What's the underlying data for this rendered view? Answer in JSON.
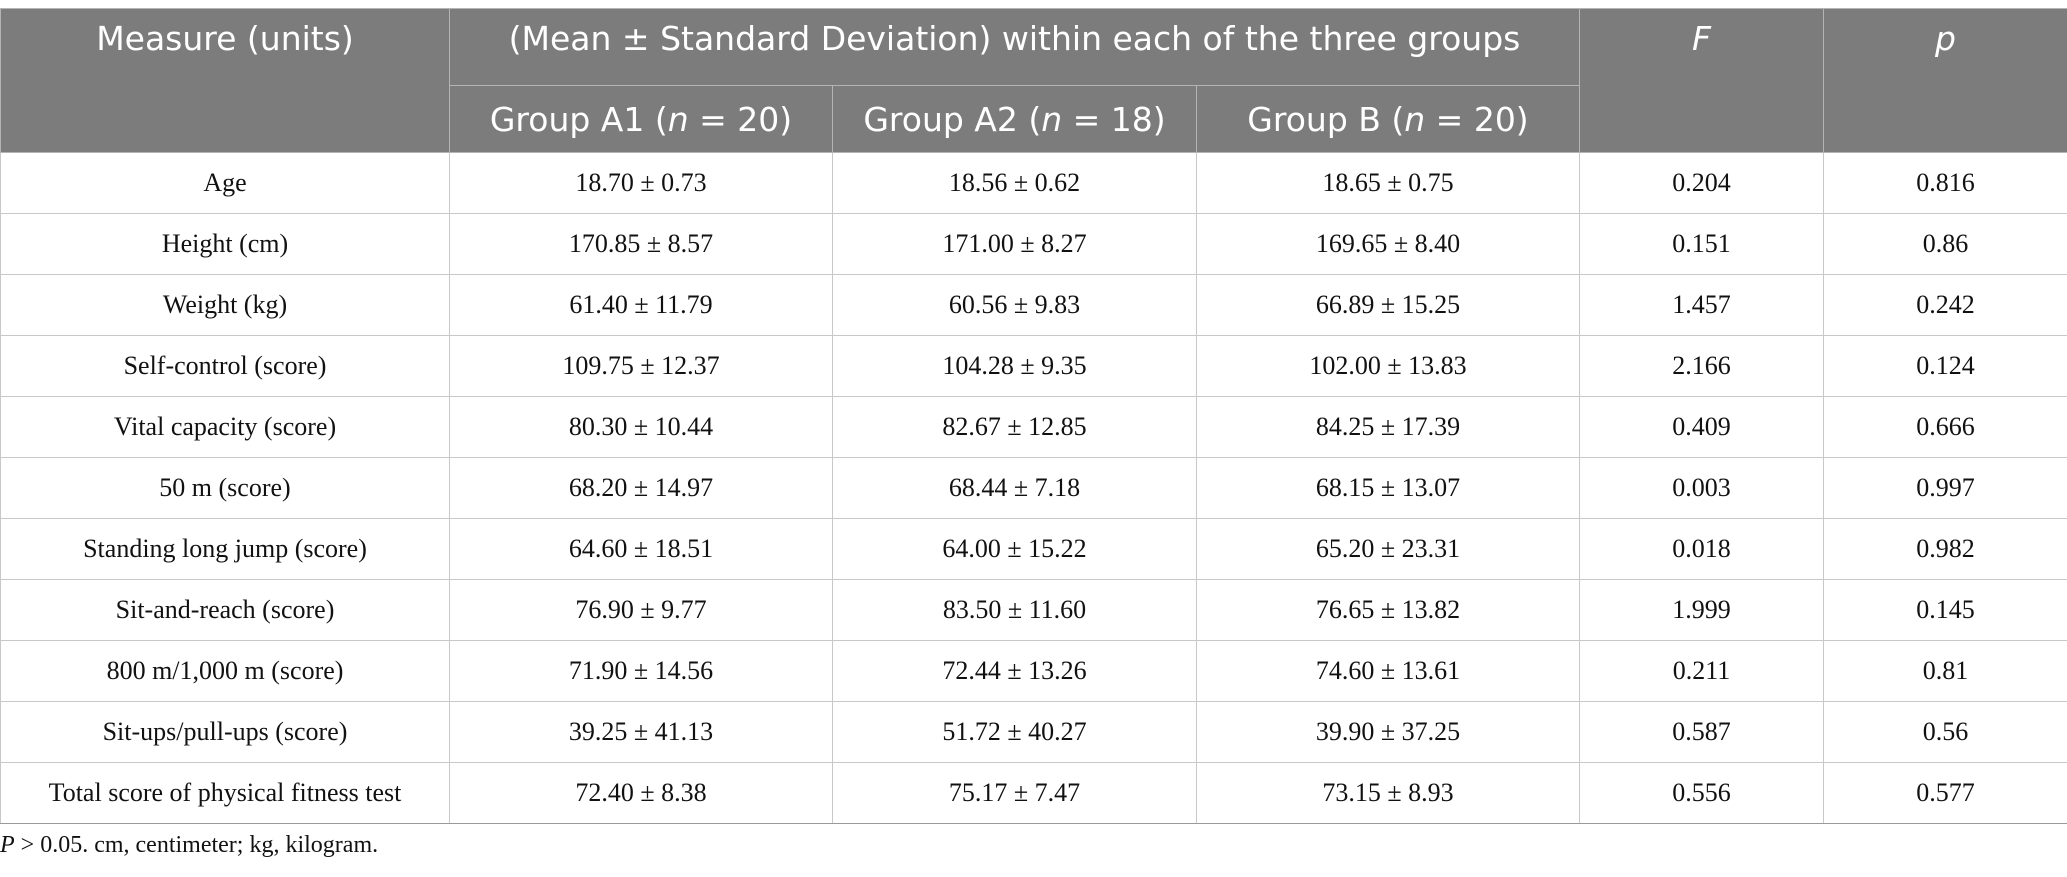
{
  "header": {
    "measure": "Measure (units)",
    "span_title": "(Mean ± Standard Deviation) within each of the three groups",
    "f": "F",
    "p": "p",
    "groups": [
      {
        "label": "Group A1 (",
        "n": "n",
        "eq": " = 20)"
      },
      {
        "label": "Group A2 (",
        "n": "n",
        "eq": " = 18)"
      },
      {
        "label": "Group B (",
        "n": "n",
        "eq": " = 20)"
      }
    ]
  },
  "rows": [
    {
      "measure": "Age",
      "a1": "18.70 ± 0.73",
      "a2": "18.56 ± 0.62",
      "b": "18.65 ± 0.75",
      "f": "0.204",
      "p": "0.816"
    },
    {
      "measure": "Height (cm)",
      "a1": "170.85 ± 8.57",
      "a2": "171.00 ± 8.27",
      "b": "169.65 ± 8.40",
      "f": "0.151",
      "p": "0.86"
    },
    {
      "measure": "Weight (kg)",
      "a1": "61.40 ± 11.79",
      "a2": "60.56 ± 9.83",
      "b": "66.89 ± 15.25",
      "f": "1.457",
      "p": "0.242"
    },
    {
      "measure": "Self-control (score)",
      "a1": "109.75 ± 12.37",
      "a2": "104.28 ± 9.35",
      "b": "102.00 ± 13.83",
      "f": "2.166",
      "p": "0.124"
    },
    {
      "measure": "Vital capacity (score)",
      "a1": "80.30 ± 10.44",
      "a2": "82.67 ± 12.85",
      "b": "84.25 ± 17.39",
      "f": "0.409",
      "p": "0.666"
    },
    {
      "measure": "50 m (score)",
      "a1": "68.20 ± 14.97",
      "a2": "68.44 ± 7.18",
      "b": "68.15 ± 13.07",
      "f": "0.003",
      "p": "0.997"
    },
    {
      "measure": "Standing long jump (score)",
      "a1": "64.60 ± 18.51",
      "a2": "64.00 ± 15.22",
      "b": "65.20 ± 23.31",
      "f": "0.018",
      "p": "0.982"
    },
    {
      "measure": "Sit-and-reach (score)",
      "a1": "76.90 ± 9.77",
      "a2": "83.50 ± 11.60",
      "b": "76.65 ± 13.82",
      "f": "1.999",
      "p": "0.145"
    },
    {
      "measure": "800 m/1,000 m (score)",
      "a1": "71.90 ± 14.56",
      "a2": "72.44 ± 13.26",
      "b": "74.60 ± 13.61",
      "f": "0.211",
      "p": "0.81"
    },
    {
      "measure": "Sit-ups/pull-ups (score)",
      "a1": "39.25 ± 41.13",
      "a2": "51.72 ± 40.27",
      "b": "39.90 ± 37.25",
      "f": "0.587",
      "p": "0.56"
    },
    {
      "measure": "Total score of physical fitness test",
      "a1": "72.40 ± 8.38",
      "a2": "75.17 ± 7.47",
      "b": "73.15 ± 8.93",
      "f": "0.556",
      "p": "0.577"
    }
  ],
  "footnote": {
    "p_symbol": "P",
    "text": " > 0.05. cm, centimeter; kg, kilogram."
  },
  "colors": {
    "header_bg": "#7c7c7c",
    "header_text": "#ffffff",
    "grid_line": "#c8c8c8"
  }
}
